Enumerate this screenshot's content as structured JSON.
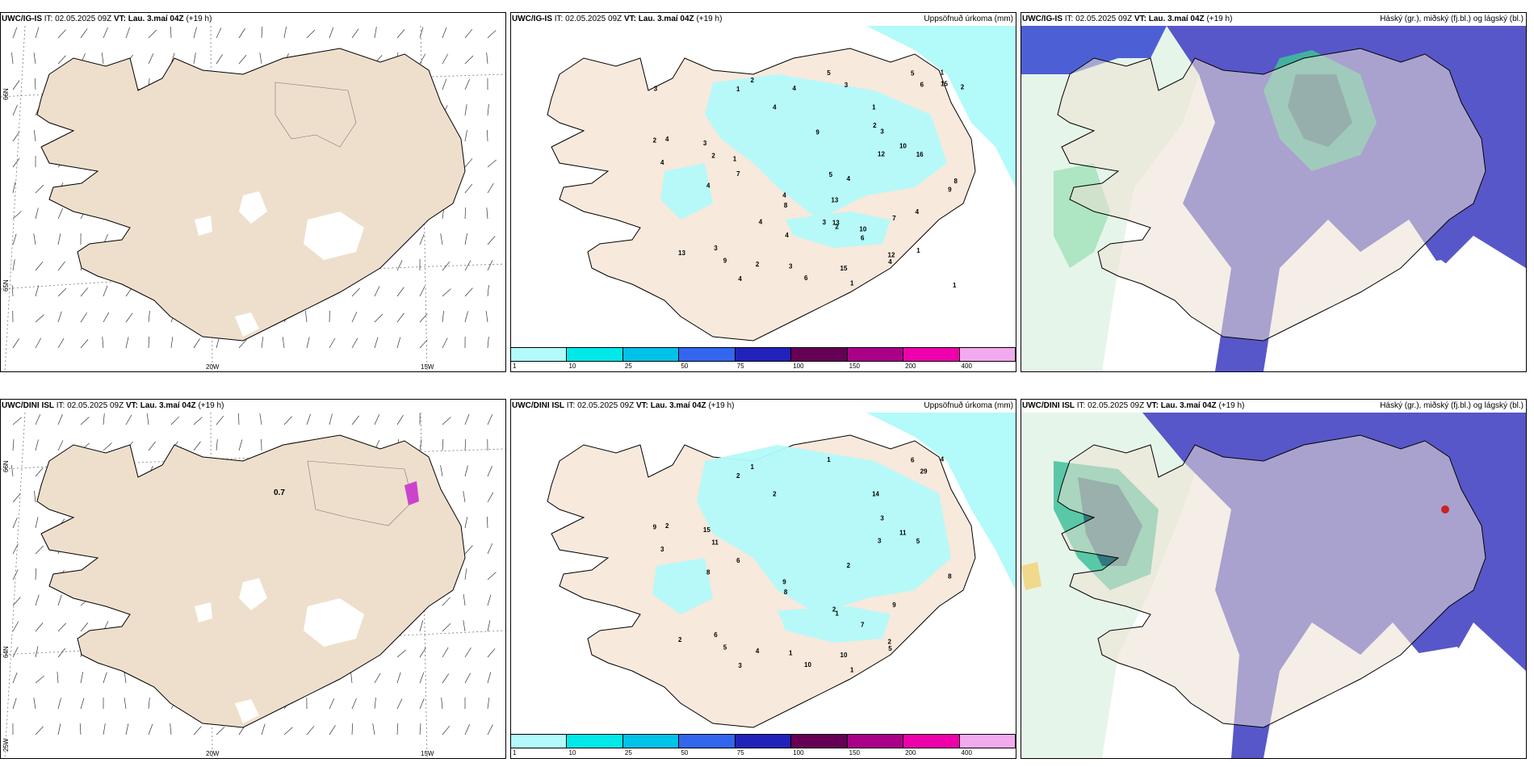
{
  "panels": [
    {
      "model": "UWC/IG-IS",
      "it_label": "IT:",
      "it": "02.05.2025 09Z",
      "vt_label": "VT:",
      "vt": "Lau. 3.maí 04Z",
      "lead": "(+19 h)",
      "right": ""
    },
    {
      "model": "UWC/IG-IS",
      "it_label": "IT:",
      "it": "02.05.2025 09Z",
      "vt_label": "VT:",
      "vt": "Lau. 3.maí 04Z",
      "lead": "(+19 h)",
      "right": "Uppsöfnuð úrkoma (mm)"
    },
    {
      "model": "UWC/IG-IS",
      "it_label": "IT:",
      "it": "02.05.2025 09Z",
      "vt_label": "VT:",
      "vt": "Lau. 3.maí 04Z",
      "lead": "(+19 h)",
      "right": "Háský (gr.), miðský (fj.bl.) og lágský (bl.)"
    },
    {
      "model": "UWC/DINI ISL",
      "it_label": "IT:",
      "it": "02.05.2025 09Z",
      "vt_label": "VT:",
      "vt": "Lau. 3.maí 04Z",
      "lead": "(+19 h)",
      "right": ""
    },
    {
      "model": "UWC/DINI ISL",
      "it_label": "IT:",
      "it": "02.05.2025 09Z",
      "vt_label": "VT:",
      "vt": "Lau. 3.maí 04Z",
      "lead": "(+19 h)",
      "right": "Uppsöfnuð úrkoma (mm)"
    },
    {
      "model": "UWC/DINI ISL",
      "it_label": "IT:",
      "it": "02.05.2025 09Z",
      "vt_label": "VT:",
      "vt": "Lau. 3.maí 04Z",
      "lead": "(+19 h)",
      "right": "Háský (gr.), miðský (fj.bl.) og lágský (bl.)"
    }
  ],
  "axis": {
    "lat66": "66N",
    "lat64": "64N",
    "lat65": "65N",
    "lon20": "20W",
    "lon15": "15W",
    "lon25": "25W"
  },
  "colorbar": {
    "ticks": [
      "1",
      "10",
      "25",
      "50",
      "75",
      "100",
      "150",
      "200",
      "400"
    ],
    "colors": [
      "#b3fafa",
      "#00e8e8",
      "#00c2e8",
      "#3366ee",
      "#2222bb",
      "#660055",
      "#aa0088",
      "#ee00aa",
      "#f2aaee"
    ]
  },
  "precip_labels_top": [
    "1",
    "1",
    "3",
    "3",
    "10",
    "15",
    "9",
    "7",
    "8",
    "9",
    "13",
    "2",
    "4",
    "13",
    "12",
    "5",
    "4",
    "6",
    "7",
    "16",
    "12",
    "2",
    "4",
    "4",
    "4",
    "3",
    "4",
    "2",
    "6",
    "4",
    "6",
    "1",
    "1",
    "2",
    "2",
    "3",
    "5",
    "4",
    "8",
    "10",
    "4",
    "5",
    "2",
    "1",
    "3",
    "4",
    "3",
    "4",
    "13",
    "15",
    "4",
    "9",
    "1",
    "2",
    "3",
    "1"
  ],
  "precip_labels_bottom": [
    "1",
    "2",
    "6",
    "15",
    "11",
    "10",
    "8",
    "6",
    "8",
    "5",
    "2",
    "9",
    "9",
    "2",
    "3",
    "6",
    "3",
    "29",
    "9",
    "5",
    "2",
    "1",
    "3",
    "5",
    "2",
    "3",
    "8",
    "11",
    "10",
    "2",
    "7",
    "4",
    "14",
    "4",
    "1",
    "1",
    "1",
    "2"
  ],
  "misc_label": "0.7"
}
